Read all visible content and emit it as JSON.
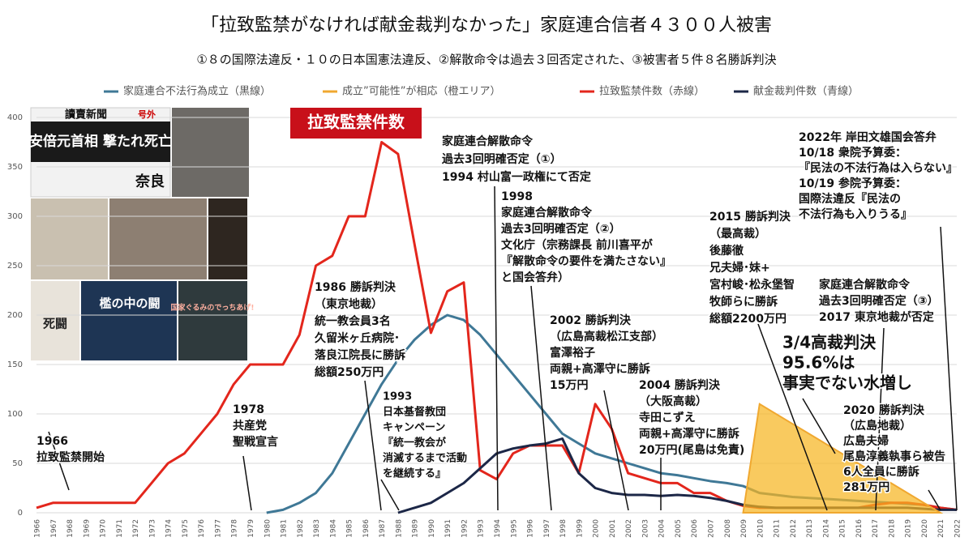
{
  "chart_data": {
    "type": "line",
    "title": "「拉致監禁がなければ献金裁判なかった」家庭連合信者４３００人被害",
    "subtitle": "①８の国際法違反・１０の日本国憲法違反、②解散命令は過去３回否定された、③被害者５件８名勝訴判決",
    "categories": [
      "1966",
      "1967",
      "1968",
      "1969",
      "1970",
      "1971",
      "1972",
      "1973",
      "1974",
      "1975",
      "1976",
      "1977",
      "1978",
      "1979",
      "1980",
      "1981",
      "1982",
      "1983",
      "1984",
      "1985",
      "1986",
      "1987",
      "1988",
      "1989",
      "1990",
      "1991",
      "1992",
      "1993",
      "1994",
      "1995",
      "1996",
      "1997",
      "1998",
      "1999",
      "2000",
      "2001",
      "2002",
      "2003",
      "2004",
      "2005",
      "2006",
      "2007",
      "2008",
      "2009",
      "2010",
      "2011",
      "2012",
      "2013",
      "2014",
      "2015",
      "2016",
      "2017",
      "2018",
      "2019",
      "2020",
      "2021",
      "2022"
    ],
    "ylim": [
      0,
      400
    ],
    "yticks": [
      0,
      50,
      100,
      150,
      200,
      250,
      300,
      350,
      400
    ],
    "grid": true,
    "series": [
      {
        "name": "家庭連合不法行為成立（黒線）",
        "color": "#3f7896",
        "style": "line",
        "values": [
          null,
          null,
          null,
          null,
          null,
          null,
          null,
          null,
          null,
          null,
          null,
          null,
          null,
          null,
          0,
          3,
          10,
          20,
          40,
          70,
          100,
          130,
          155,
          175,
          190,
          200,
          195,
          180,
          160,
          140,
          120,
          100,
          80,
          70,
          60,
          55,
          50,
          45,
          40,
          38,
          35,
          32,
          30,
          27,
          20,
          18,
          16,
          15,
          14,
          13,
          12,
          11,
          10,
          9,
          8,
          5,
          3
        ]
      },
      {
        "name": "成立”可能性”が相応（橙エリア）",
        "color": "#f0a830",
        "style": "area",
        "values": [
          null,
          null,
          null,
          null,
          null,
          null,
          null,
          null,
          null,
          null,
          null,
          null,
          null,
          null,
          null,
          null,
          null,
          null,
          null,
          null,
          null,
          null,
          null,
          null,
          null,
          null,
          null,
          null,
          null,
          null,
          null,
          null,
          null,
          null,
          null,
          null,
          null,
          null,
          null,
          null,
          null,
          null,
          null,
          0,
          110,
          100,
          90,
          80,
          70,
          60,
          50,
          40,
          30,
          20,
          10,
          0,
          null
        ]
      },
      {
        "name": "拉致監禁件数（赤線）",
        "color": "#e3261c",
        "style": "line",
        "values": [
          5,
          10,
          10,
          10,
          10,
          10,
          10,
          30,
          50,
          60,
          80,
          100,
          130,
          150,
          150,
          150,
          180,
          250,
          260,
          300,
          300,
          375,
          363,
          272,
          182,
          224,
          233,
          43,
          34,
          60,
          68,
          68,
          68,
          40,
          110,
          85,
          40,
          35,
          30,
          30,
          20,
          20,
          12,
          7,
          5,
          5,
          5,
          5,
          5,
          5,
          5,
          8,
          10,
          10,
          8,
          5,
          3
        ]
      },
      {
        "name": "献金裁判件数（青線）",
        "color": "#1c2747",
        "style": "line",
        "values": [
          null,
          null,
          null,
          null,
          null,
          null,
          null,
          null,
          null,
          null,
          null,
          null,
          null,
          null,
          null,
          null,
          null,
          null,
          null,
          null,
          null,
          null,
          0,
          5,
          10,
          20,
          30,
          45,
          60,
          65,
          68,
          70,
          75,
          40,
          25,
          20,
          18,
          18,
          17,
          18,
          17,
          15,
          12,
          8,
          6,
          5,
          5,
          5,
          5,
          5,
          5,
          5,
          5,
          5,
          4,
          3,
          3
        ]
      }
    ],
    "callout": "拉致監禁件数",
    "annotations": [
      [
        "1966",
        "拉致監禁開始"
      ],
      [
        "1978",
        "共産党",
        "聖戦宣言"
      ],
      [
        "1986 勝訴判決",
        "（東京地裁）",
        "統一教会員3名",
        "久留米ヶ丘病院･",
        "落良江院長に勝訴",
        "総額250万円"
      ],
      [
        "1993",
        "日本基督教団",
        "キャンペーン",
        "『統一教会が",
        "消滅するまで活動",
        "を継続する』"
      ],
      [
        "家庭連合解散命令",
        "過去3回明確否定（①）",
        "1994 村山富一政権にて否定"
      ],
      [
        "1998",
        "家庭連合解散命令",
        "過去3回明確否定（②）",
        "文化庁（宗務課長 前川喜平が",
        "『解散命令の要件を満たさない』",
        "と国会答弁）"
      ],
      [
        "2002 勝訴判決",
        "（広島高裁松江支部）",
        "富澤裕子",
        "両親+高澤守に勝訴",
        "15万円"
      ],
      [
        "2004 勝訴判決",
        "（大阪高裁）",
        "寺田こずえ",
        "両親+高澤守に勝訴",
        "20万円(尾島は免責)"
      ],
      [
        "2015 勝訴判決",
        "（最高裁）",
        "後藤徹",
        "兄夫婦･妹+",
        "宮村峻･松永堡智",
        "牧師らに勝訴",
        "総額2200万円"
      ],
      [
        "家庭連合解散命令",
        "過去3回明確否定（③）",
        "2017 東京地裁が否定"
      ],
      [
        "2022年 岸田文雄国会答弁",
        "10/18 衆院予算委：",
        "『民法の不法行為は入らない』",
        "10/19 参院予算委：",
        "国際法違反『民法の",
        "不法行為も入りうる』"
      ],
      [
        "2020 勝訴判決",
        "（広島地裁）",
        "広島夫婦",
        "尾島淳義執事ら被告",
        "6人全員に勝訴",
        "281万円"
      ],
      [
        "3/4高裁判決",
        "95.6%は",
        "事実でない水増し"
      ]
    ],
    "collage": [
      "讀賣新聞",
      "号外",
      "安倍元首相 撃たれ死亡",
      "奈良",
      "檻の中の闘",
      "死闘",
      "国家ぐるみのでっちあげ!"
    ]
  }
}
